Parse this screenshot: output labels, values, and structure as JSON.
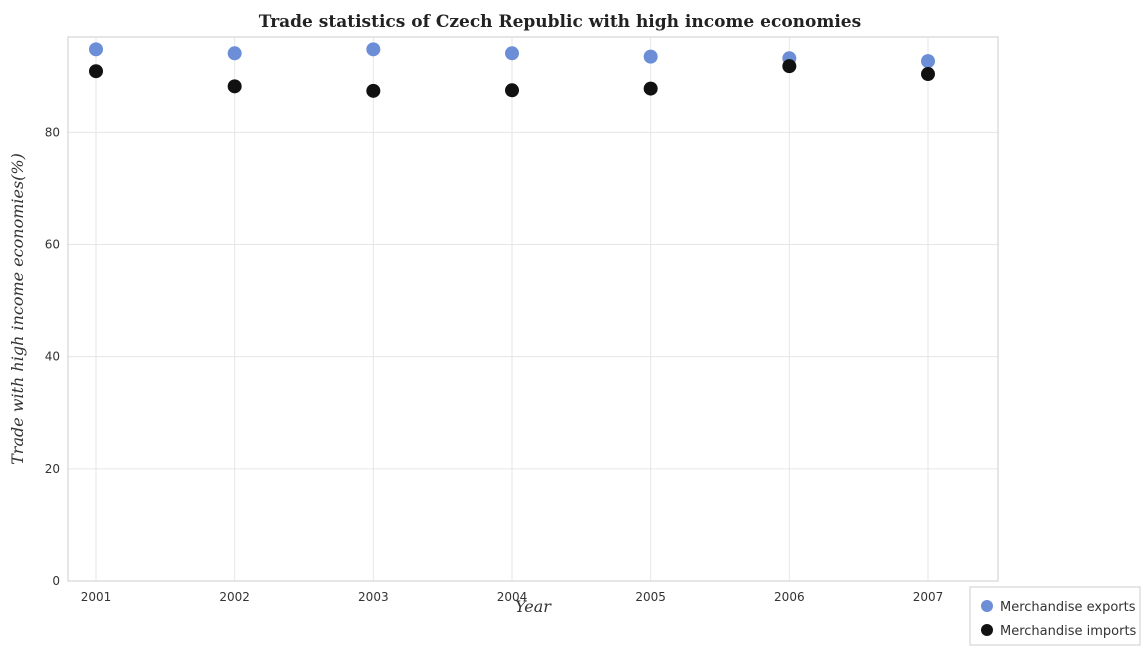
{
  "chart_data": {
    "type": "scatter",
    "title": "Trade statistics of Czech Republic with high income economies",
    "xlabel": "Year",
    "ylabel": "Trade with high income economies(%)",
    "x": [
      "2001",
      "2002",
      "2003",
      "2004",
      "2005",
      "2006",
      "2007"
    ],
    "ylim": [
      0,
      97
    ],
    "yticks": [
      0,
      20,
      40,
      60,
      80
    ],
    "grid": true,
    "legend_position": "bottom-right",
    "series": [
      {
        "name": "Merchandise exports",
        "color": "#6b8ed6",
        "values": [
          94.8,
          94.1,
          94.8,
          94.1,
          93.5,
          93.2,
          92.7
        ]
      },
      {
        "name": "Merchandise imports",
        "color": "#111111",
        "values": [
          90.9,
          88.2,
          87.4,
          87.5,
          87.8,
          91.8,
          90.4
        ]
      }
    ]
  }
}
